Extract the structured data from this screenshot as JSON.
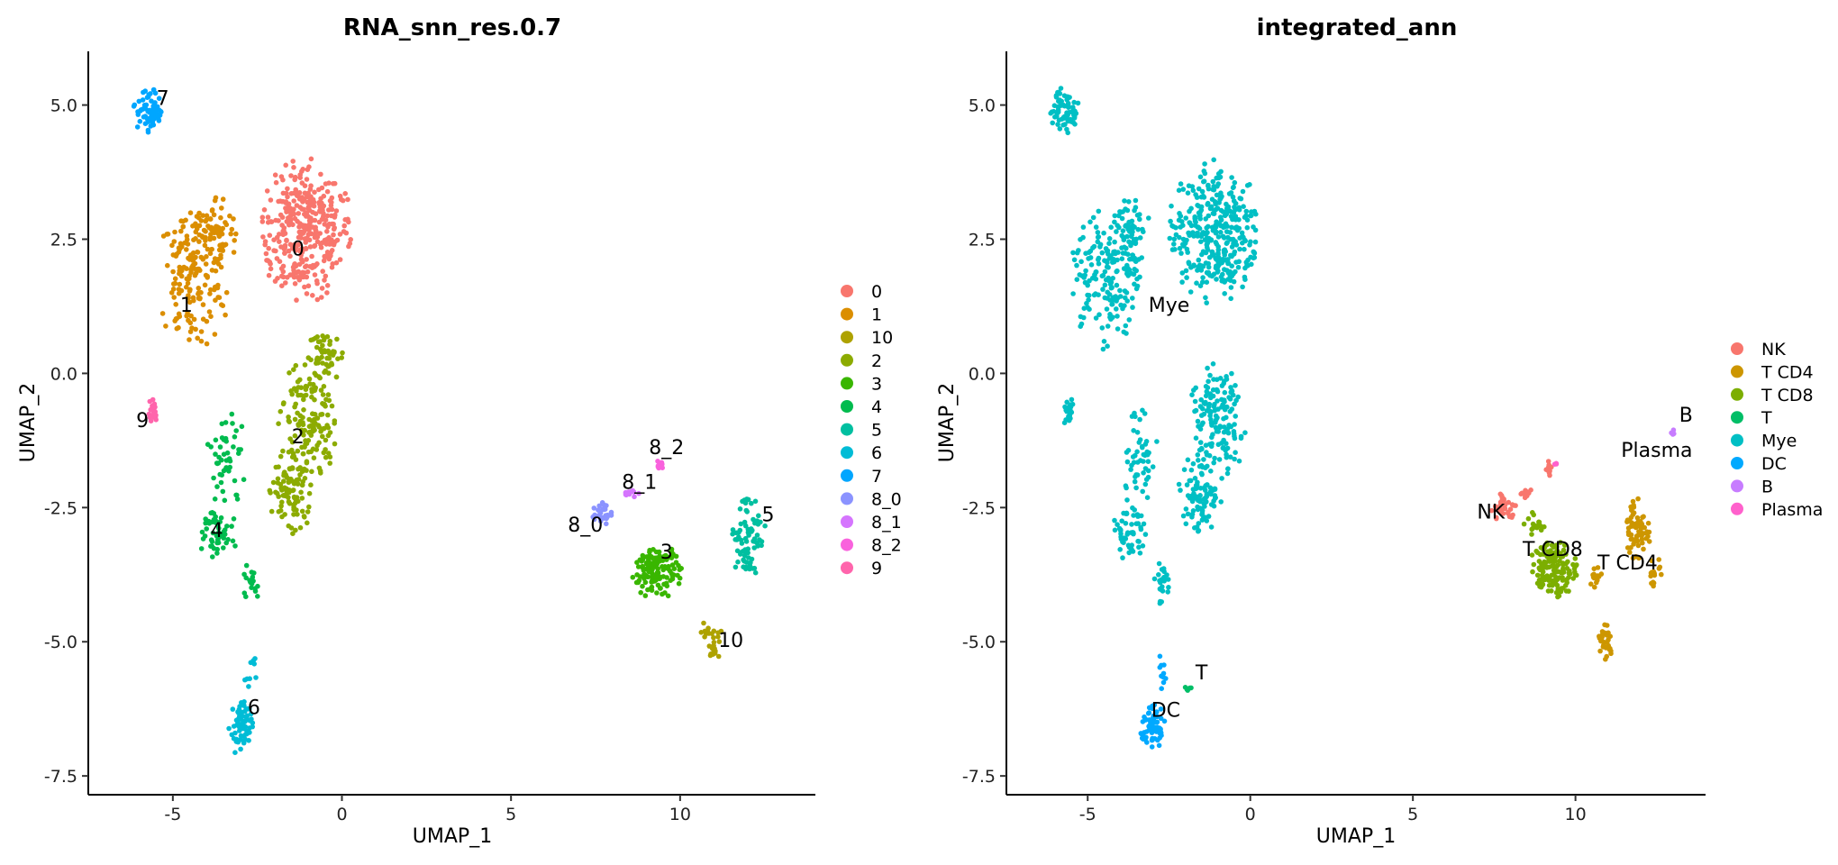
{
  "chart_data": [
    {
      "type": "scatter",
      "title": "RNA_snn_res.0.7",
      "xlabel": "UMAP_1",
      "ylabel": "UMAP_2",
      "xlim": [
        -7.5,
        14
      ],
      "ylim": [
        -7.85,
        6.0
      ],
      "xticks": [
        -5,
        0,
        5,
        10
      ],
      "xtick_labels": [
        "-5",
        "0",
        "5",
        "10"
      ],
      "yticks": [
        5.0,
        2.5,
        0.0,
        -2.5,
        -5.0,
        -7.5
      ],
      "ytick_labels": [
        "5.0",
        "2.5",
        "0.0",
        "-2.5",
        "-5.0",
        "-7.5"
      ],
      "grid": false,
      "legend_position": "right",
      "series": [
        {
          "name": "0",
          "color": "#F8766D",
          "label_at": [
            -1.3,
            2.3
          ]
        },
        {
          "name": "1",
          "color": "#DB8E00",
          "label_at": [
            -4.6,
            1.25
          ]
        },
        {
          "name": "10",
          "color": "#AEA200",
          "label_at": [
            11.5,
            -5.0
          ]
        },
        {
          "name": "2",
          "color": "#8CAB00",
          "label_at": [
            -1.3,
            -1.2
          ]
        },
        {
          "name": "3",
          "color": "#39B600",
          "label_at": [
            9.6,
            -3.35
          ]
        },
        {
          "name": "4",
          "color": "#00BB4E",
          "label_at": [
            -3.7,
            -2.95
          ]
        },
        {
          "name": "5",
          "color": "#00BFA0",
          "label_at": [
            12.6,
            -2.65
          ]
        },
        {
          "name": "6",
          "color": "#00BCD6",
          "label_at": [
            -2.6,
            -6.25
          ]
        },
        {
          "name": "7",
          "color": "#00A6FF",
          "label_at": [
            -5.3,
            5.1
          ]
        },
        {
          "name": "8_0",
          "color": "#8B93FF",
          "label_at": [
            7.2,
            -2.85
          ]
        },
        {
          "name": "8_1",
          "color": "#D575FE",
          "label_at": [
            8.8,
            -2.05
          ]
        },
        {
          "name": "8_2",
          "color": "#F962DD",
          "label_at": [
            9.6,
            -1.4
          ]
        },
        {
          "name": "9",
          "color": "#FF65AC",
          "label_at": [
            -5.9,
            -0.9
          ]
        }
      ]
    },
    {
      "type": "scatter",
      "title": "integrated_ann",
      "xlabel": "UMAP_1",
      "ylabel": "UMAP_2",
      "xlim": [
        -7.5,
        14
      ],
      "ylim": [
        -7.85,
        6.0
      ],
      "xticks": [
        -5,
        0,
        5,
        10
      ],
      "xtick_labels": [
        "-5",
        "0",
        "5",
        "10"
      ],
      "yticks": [
        5.0,
        2.5,
        0.0,
        -2.5,
        -5.0,
        -7.5
      ],
      "ytick_labels": [
        "5.0",
        "2.5",
        "0.0",
        "-2.5",
        "-5.0",
        "-7.5"
      ],
      "grid": false,
      "legend_position": "right",
      "series": [
        {
          "name": "NK",
          "color": "#F8766D",
          "label_at": [
            7.4,
            -2.6
          ]
        },
        {
          "name": "T CD4",
          "color": "#CD9600",
          "label_at": [
            11.6,
            -3.55
          ]
        },
        {
          "name": "T CD8",
          "color": "#7CAE00",
          "label_at": [
            9.3,
            -3.3
          ]
        },
        {
          "name": "T",
          "color": "#00BE67",
          "label_at": [
            -1.5,
            -5.6
          ]
        },
        {
          "name": "Mye",
          "color": "#00BFC4",
          "label_at": [
            -2.5,
            1.25
          ]
        },
        {
          "name": "DC",
          "color": "#00A9FF",
          "label_at": [
            -2.6,
            -6.3
          ]
        },
        {
          "name": "B",
          "color": "#C77CFF",
          "label_at": [
            13.4,
            -0.8
          ]
        },
        {
          "name": "Plasma",
          "color": "#FF61CC",
          "label_at": [
            12.5,
            -1.45
          ]
        }
      ]
    }
  ]
}
